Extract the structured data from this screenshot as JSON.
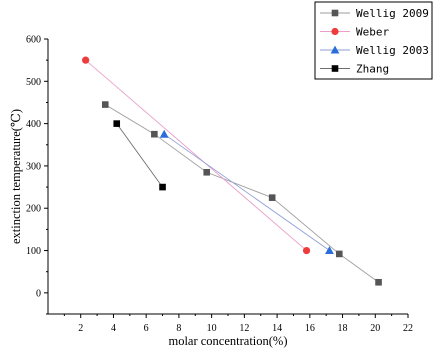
{
  "chart_data": {
    "type": "scatter",
    "xlabel": "molar concentration(%)",
    "ylabel": "extinction temperature(℃)",
    "xlim": [
      0,
      22
    ],
    "ylim": [
      -50,
      600
    ],
    "x_ticks": [
      2,
      4,
      6,
      8,
      10,
      12,
      14,
      16,
      18,
      20,
      22
    ],
    "y_ticks": [
      0,
      100,
      200,
      300,
      400,
      500,
      600
    ],
    "grid": false,
    "legend_position": "top-right",
    "series": [
      {
        "name": "Wellig 2009",
        "marker": "square",
        "marker_color": "#555555",
        "line_color": "#9e9e9e",
        "x": [
          3.5,
          6.5,
          9.7,
          13.7,
          17.8,
          20.2
        ],
        "y": [
          445,
          375,
          285,
          225,
          92,
          25
        ]
      },
      {
        "name": "Weber",
        "marker": "circle",
        "marker_color": "#ee3b3b",
        "line_color": "#e8a0c8",
        "x": [
          2.3,
          15.8
        ],
        "y": [
          550,
          100
        ]
      },
      {
        "name": "Wellig 2003",
        "marker": "triangle",
        "marker_color": "#2a6edb",
        "line_color": "#8e9fd6",
        "x": [
          7.1,
          17.2
        ],
        "y": [
          375,
          100
        ]
      },
      {
        "name": "Zhang",
        "marker": "square",
        "marker_color": "#000000",
        "line_color": "#6e6e6e",
        "x": [
          4.2,
          7.0
        ],
        "y": [
          400,
          250
        ]
      }
    ]
  }
}
